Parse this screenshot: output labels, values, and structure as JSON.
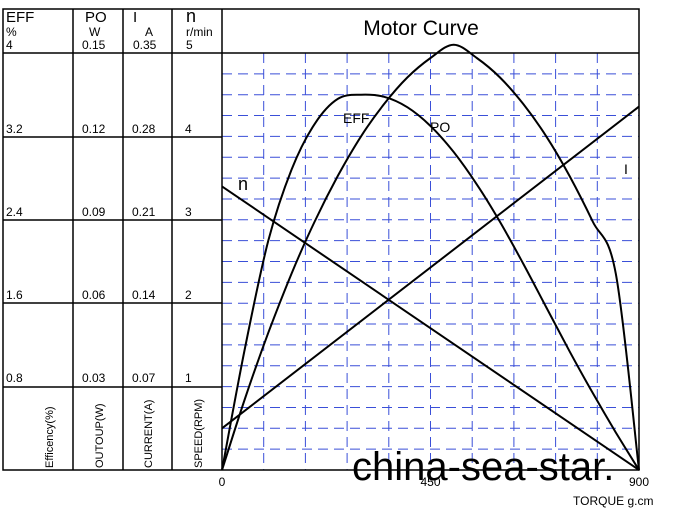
{
  "chart_data": {
    "type": "line",
    "title": "Motor Curve",
    "xlabel": "TORQUE g.cm",
    "x_ticks": [
      "0",
      "450",
      "900"
    ],
    "xlim": [
      0,
      900
    ],
    "grid": true,
    "grid_style": "dashed",
    "grid_color": "#3a4fd8",
    "columns": [
      {
        "name": "EFF",
        "unit": "%",
        "max": "4",
        "ticks": [
          "3.2",
          "2.4",
          "1.6",
          "0.8"
        ],
        "axis_label": "Efficency(%)"
      },
      {
        "name": "PO",
        "unit": "W",
        "max": "0.15",
        "ticks": [
          "0.12",
          "0.09",
          "0.06",
          "0.03"
        ],
        "axis_label": "OUTOUP(W)"
      },
      {
        "name": "I",
        "unit": "A",
        "max": "0.35",
        "ticks": [
          "0.28",
          "0.21",
          "0.14",
          "0.07"
        ],
        "axis_label": "CURRENT(A)"
      },
      {
        "name": "n",
        "unit": "r/min",
        "max": "5",
        "ticks": [
          "4",
          "3",
          "2",
          "1"
        ],
        "axis_label": "SPEED(RPM)"
      }
    ],
    "series": [
      {
        "name": "EFF",
        "ymax": 4,
        "x": [
          0,
          50,
          100,
          150,
          200,
          250,
          300,
          350,
          400,
          450,
          500,
          550,
          600,
          650,
          700,
          750,
          800,
          850,
          900
        ],
        "y": [
          0.0,
          1.18,
          2.2,
          2.88,
          3.32,
          3.56,
          3.6,
          3.58,
          3.48,
          3.3,
          3.05,
          2.74,
          2.38,
          1.98,
          1.56,
          1.14,
          0.74,
          0.36,
          0.0
        ]
      },
      {
        "name": "PO",
        "ymax": 0.15,
        "x": [
          0,
          50,
          100,
          150,
          200,
          250,
          300,
          350,
          400,
          450,
          500,
          550,
          600,
          650,
          700,
          750,
          800,
          850,
          900
        ],
        "y": [
          0.0,
          0.0259,
          0.0494,
          0.0706,
          0.0894,
          0.1058,
          0.12,
          0.1317,
          0.1412,
          0.1482,
          0.153,
          0.1482,
          0.1412,
          0.1317,
          0.12,
          0.1058,
          0.0894,
          0.0706,
          0.0
        ]
      },
      {
        "name": "I",
        "ymax": 0.35,
        "x": [
          0,
          900
        ],
        "y": [
          0.035,
          0.305
        ]
      },
      {
        "name": "n",
        "ymax": 5,
        "x": [
          0,
          900
        ],
        "y": [
          3.4,
          0.0
        ]
      }
    ]
  },
  "watermark": "china-sea-star."
}
